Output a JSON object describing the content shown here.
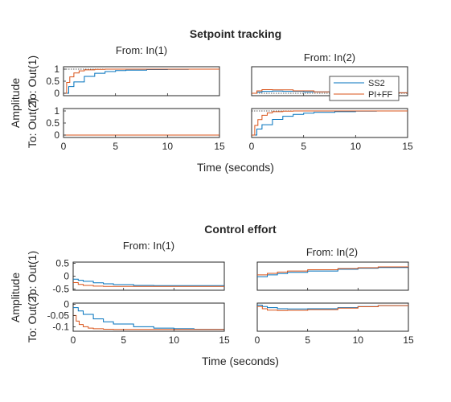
{
  "colors": {
    "SS2": "#0072BD",
    "PI+FF": "#D95319",
    "axes": "#262626"
  },
  "chart_data": [
    {
      "type": "line",
      "title": "Setpoint tracking",
      "xlabel": "Time (seconds)",
      "ylabel": "Amplitude",
      "from_labels": [
        "From: In(1)",
        "From: In(2)"
      ],
      "to_labels": [
        "To: Out(1)",
        "To: Out(2)"
      ],
      "xlim": [
        0,
        15
      ],
      "xticks": [
        "0",
        "5",
        "10",
        "15"
      ],
      "legend": {
        "placement": "inside-right",
        "entries": [
          "SS2",
          "PI+FF"
        ]
      },
      "subplots": [
        {
          "row": 0,
          "col": 0,
          "ylim": [
            -0.1,
            1.1
          ],
          "yticks": [
            {
              "v": 1,
              "label": "1"
            },
            {
              "v": 0.5,
              "label": "0.5"
            },
            {
              "v": 0,
              "label": "0"
            }
          ],
          "reference": 1,
          "series": [
            {
              "name": "SS2",
              "x": [
                0,
                0.5,
                1,
                2,
                3,
                4,
                5,
                6,
                8,
                10,
                12,
                15
              ],
              "y": [
                0,
                0.28,
                0.47,
                0.7,
                0.83,
                0.9,
                0.94,
                0.96,
                0.985,
                0.995,
                1,
                1
              ]
            },
            {
              "name": "PI+FF",
              "x": [
                0,
                0.3,
                0.6,
                1,
                1.5,
                2,
                3,
                4,
                5,
                15
              ],
              "y": [
                0,
                0.45,
                0.68,
                0.84,
                0.93,
                0.97,
                0.99,
                1,
                1,
                1
              ]
            }
          ]
        },
        {
          "row": 0,
          "col": 1,
          "ylim": [
            -0.1,
            1.1
          ],
          "yticks": [],
          "reference": 0,
          "series": [
            {
              "name": "SS2",
              "x": [
                0,
                0.5,
                1,
                2,
                3,
                5,
                8,
                10,
                15
              ],
              "y": [
                0,
                0.05,
                0.08,
                0.09,
                0.08,
                0.06,
                0.04,
                0.02,
                0.01
              ]
            },
            {
              "name": "PI+FF",
              "x": [
                0,
                0.5,
                1,
                2,
                4,
                6,
                8,
                10,
                15
              ],
              "y": [
                0,
                0.1,
                0.15,
                0.14,
                0.1,
                0.06,
                0.03,
                0.02,
                0.01
              ]
            }
          ]
        },
        {
          "row": 1,
          "col": 0,
          "ylim": [
            -0.1,
            1.1
          ],
          "yticks": [
            {
              "v": 1,
              "label": "1"
            },
            {
              "v": 0.5,
              "label": "0.5"
            },
            {
              "v": 0,
              "label": "0"
            }
          ],
          "reference": 0,
          "series": [
            {
              "name": "SS2",
              "x": [
                0,
                15
              ],
              "y": [
                0,
                0
              ]
            },
            {
              "name": "PI+FF",
              "x": [
                0,
                15
              ],
              "y": [
                0,
                0
              ]
            }
          ]
        },
        {
          "row": 1,
          "col": 1,
          "ylim": [
            -0.1,
            1.1
          ],
          "yticks": [],
          "reference": 1,
          "series": [
            {
              "name": "SS2",
              "x": [
                0,
                0.5,
                1,
                2,
                3,
                4,
                5,
                6,
                8,
                10,
                12,
                15
              ],
              "y": [
                0,
                0.25,
                0.43,
                0.65,
                0.78,
                0.86,
                0.91,
                0.94,
                0.97,
                0.99,
                1,
                1
              ]
            },
            {
              "name": "PI+FF",
              "x": [
                0,
                0.3,
                0.6,
                1,
                1.5,
                2,
                3,
                4,
                5,
                15
              ],
              "y": [
                0,
                0.4,
                0.64,
                0.82,
                0.92,
                0.97,
                0.99,
                1,
                1,
                1
              ]
            }
          ]
        }
      ]
    },
    {
      "type": "line",
      "title": "Control effort",
      "xlabel": "Time (seconds)",
      "ylabel": "Amplitude",
      "from_labels": [
        "From: In(1)",
        "From: In(2)"
      ],
      "to_labels": [
        "To: Out(1)",
        "To: Out(2)"
      ],
      "xlim": [
        0,
        15
      ],
      "xticks": [
        "0",
        "5",
        "10",
        "15"
      ],
      "subplots": [
        {
          "row": 0,
          "col": 0,
          "ylim": [
            -0.55,
            0.55
          ],
          "yticks": [
            {
              "v": 0.5,
              "label": "0.5"
            },
            {
              "v": 0,
              "label": "0"
            },
            {
              "v": -0.5,
              "label": "-0.5"
            }
          ],
          "series": [
            {
              "name": "SS2",
              "x": [
                0,
                0.5,
                1,
                2,
                3,
                4,
                6,
                8,
                10,
                15
              ],
              "y": [
                -0.12,
                -0.16,
                -0.2,
                -0.26,
                -0.3,
                -0.33,
                -0.36,
                -0.37,
                -0.37,
                -0.37
              ]
            },
            {
              "name": "PI+FF",
              "x": [
                0,
                0.5,
                1,
                2,
                3,
                4,
                6,
                8,
                15
              ],
              "y": [
                -0.25,
                -0.32,
                -0.36,
                -0.39,
                -0.4,
                -0.4,
                -0.4,
                -0.4,
                -0.4
              ]
            }
          ]
        },
        {
          "row": 0,
          "col": 1,
          "ylim": [
            -0.55,
            0.55
          ],
          "yticks": [],
          "series": [
            {
              "name": "SS2",
              "x": [
                0,
                1,
                2,
                3,
                5,
                8,
                10,
                12,
                15
              ],
              "y": [
                -0.02,
                0.05,
                0.1,
                0.15,
                0.2,
                0.27,
                0.31,
                0.34,
                0.38
              ]
            },
            {
              "name": "PI+FF",
              "x": [
                0,
                1,
                2,
                3,
                5,
                8,
                10,
                12,
                15
              ],
              "y": [
                0.05,
                0.11,
                0.16,
                0.2,
                0.25,
                0.3,
                0.33,
                0.36,
                0.39
              ]
            }
          ]
        },
        {
          "row": 1,
          "col": 0,
          "ylim": [
            -0.12,
            0.005
          ],
          "yticks": [
            {
              "v": 0,
              "label": "0"
            },
            {
              "v": -0.05,
              "label": "-0.05"
            },
            {
              "v": -0.1,
              "label": "-0.1"
            }
          ],
          "series": [
            {
              "name": "SS2",
              "x": [
                0,
                0.5,
                1,
                2,
                3,
                4,
                6,
                8,
                10,
                12,
                15
              ],
              "y": [
                -0.015,
                -0.03,
                -0.045,
                -0.065,
                -0.078,
                -0.088,
                -0.1,
                -0.106,
                -0.109,
                -0.111,
                -0.112
              ]
            },
            {
              "name": "PI+FF",
              "x": [
                0,
                0.3,
                0.6,
                1,
                1.5,
                2,
                3,
                4,
                6,
                15
              ],
              "y": [
                -0.05,
                -0.075,
                -0.09,
                -0.1,
                -0.106,
                -0.109,
                -0.111,
                -0.112,
                -0.112,
                -0.112
              ]
            }
          ]
        },
        {
          "row": 1,
          "col": 1,
          "ylim": [
            -0.12,
            0.005
          ],
          "yticks": [],
          "series": [
            {
              "name": "SS2",
              "x": [
                0,
                0.5,
                1,
                2,
                3,
                5,
                8,
                10,
                12,
                15
              ],
              "y": [
                -0.004,
                -0.01,
                -0.015,
                -0.02,
                -0.021,
                -0.02,
                -0.015,
                -0.01,
                -0.006,
                -0.003
              ]
            },
            {
              "name": "PI+FF",
              "x": [
                0,
                0.5,
                1,
                2,
                3,
                5,
                8,
                10,
                12,
                15
              ],
              "y": [
                -0.01,
                -0.02,
                -0.026,
                -0.028,
                -0.027,
                -0.024,
                -0.017,
                -0.011,
                -0.006,
                -0.003
              ]
            }
          ]
        }
      ]
    }
  ]
}
